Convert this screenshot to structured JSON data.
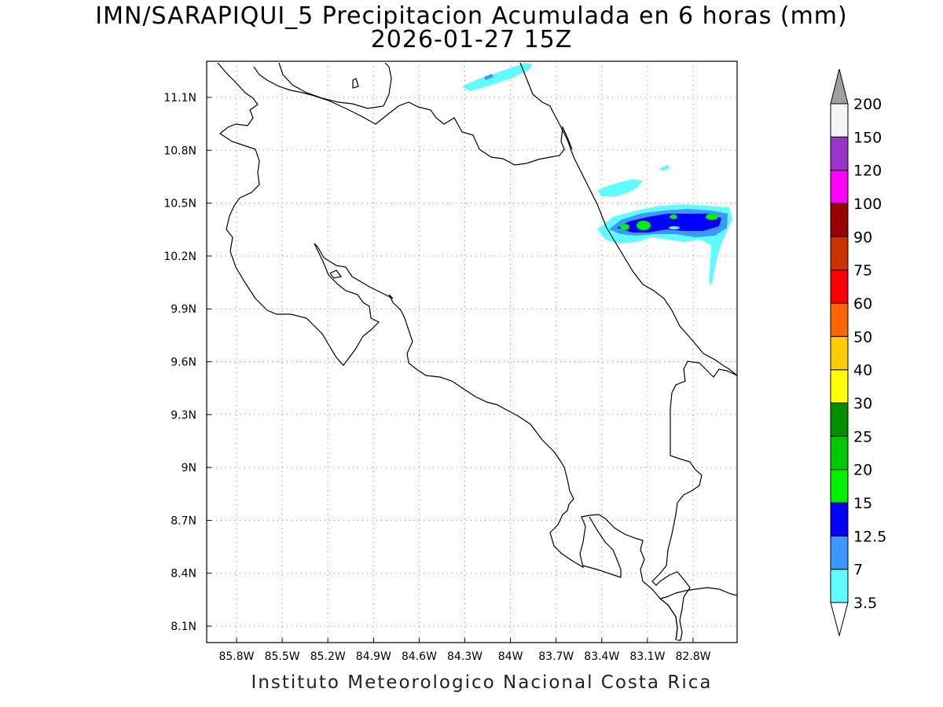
{
  "title": {
    "line1": "IMN/SARAPIQUI_5 Precipitacion Acumulada en 6 horas (mm)",
    "line2": "2026-01-27 15Z"
  },
  "credit": "Instituto Meteorologico Nacional Costa Rica",
  "map": {
    "lon_range": [
      -86.05,
      -82.65
    ],
    "lat_range": [
      8.02,
      11.35
    ],
    "lon_ticks": [
      -85.8,
      -85.5,
      -85.2,
      -84.9,
      -84.6,
      -84.3,
      -84.0,
      -83.7,
      -83.4,
      -83.1,
      -82.8
    ],
    "lon_labels": [
      "85.8W",
      "85.5W",
      "85.2W",
      "84.9W",
      "84.6W",
      "84.3W",
      "84W",
      "83.7W",
      "83.4W",
      "83.1W",
      "82.8W"
    ],
    "lat_ticks": [
      8.1,
      8.4,
      8.7,
      9.0,
      9.3,
      9.6,
      9.9,
      10.2,
      10.5,
      10.8,
      11.1
    ],
    "lat_labels": [
      "8.1N",
      "8.4N",
      "8.7N",
      "9N",
      "9.3N",
      "9.6N",
      "9.9N",
      "10.2N",
      "10.5N",
      "10.8N",
      "11.1N"
    ],
    "grid": "dotted"
  },
  "colorbar": {
    "unit": "mm",
    "levels": [
      "3.5",
      "7",
      "12.5",
      "15",
      "20",
      "25",
      "30",
      "40",
      "50",
      "60",
      "75",
      "90",
      "100",
      "120",
      "150",
      "200"
    ],
    "colors": [
      "#5ffcff",
      "#3a98ff",
      "#0000ff",
      "#00f000",
      "#00c800",
      "#008f00",
      "#ffff00",
      "#ffcc00",
      "#ff6600",
      "#ff0000",
      "#cc3300",
      "#990000",
      "#ff00ff",
      "#9933cc",
      "#f5f5f5"
    ],
    "over_color": "#a0a0a0",
    "under_color": "#ffffff"
  },
  "precip_colors": {
    "light": "#5ffcff",
    "medium": "#3a98ff",
    "heavy": "#0000ff",
    "very_heavy": "#00f000"
  }
}
